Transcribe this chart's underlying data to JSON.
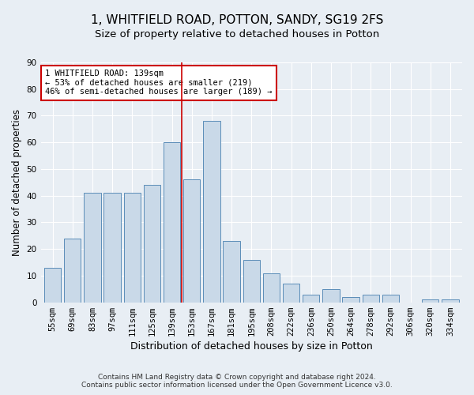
{
  "title": "1, WHITFIELD ROAD, POTTON, SANDY, SG19 2FS",
  "subtitle": "Size of property relative to detached houses in Potton",
  "xlabel": "Distribution of detached houses by size in Potton",
  "ylabel": "Number of detached properties",
  "categories": [
    "55sqm",
    "69sqm",
    "83sqm",
    "97sqm",
    "111sqm",
    "125sqm",
    "139sqm",
    "153sqm",
    "167sqm",
    "181sqm",
    "195sqm",
    "208sqm",
    "222sqm",
    "236sqm",
    "250sqm",
    "264sqm",
    "278sqm",
    "292sqm",
    "306sqm",
    "320sqm",
    "334sqm"
  ],
  "values": [
    13,
    24,
    41,
    41,
    41,
    44,
    60,
    46,
    68,
    23,
    16,
    11,
    7,
    3,
    5,
    2,
    3,
    3,
    0,
    1,
    1
  ],
  "bar_color": "#c9d9e8",
  "bar_edge_color": "#5b8db8",
  "vline_index": 6,
  "vline_color": "#cc0000",
  "annotation_line1": "1 WHITFIELD ROAD: 139sqm",
  "annotation_line2": "← 53% of detached houses are smaller (219)",
  "annotation_line3": "46% of semi-detached houses are larger (189) →",
  "annotation_box_color": "#ffffff",
  "annotation_box_edge": "#cc0000",
  "ylim": [
    0,
    90
  ],
  "yticks": [
    0,
    10,
    20,
    30,
    40,
    50,
    60,
    70,
    80,
    90
  ],
  "footer1": "Contains HM Land Registry data © Crown copyright and database right 2024.",
  "footer2": "Contains public sector information licensed under the Open Government Licence v3.0.",
  "bg_color": "#e8eef4",
  "grid_color": "#ffffff",
  "title_fontsize": 11,
  "subtitle_fontsize": 9.5,
  "axis_label_fontsize": 8.5,
  "tick_fontsize": 7.5,
  "annotation_fontsize": 7.5,
  "footer_fontsize": 6.5
}
